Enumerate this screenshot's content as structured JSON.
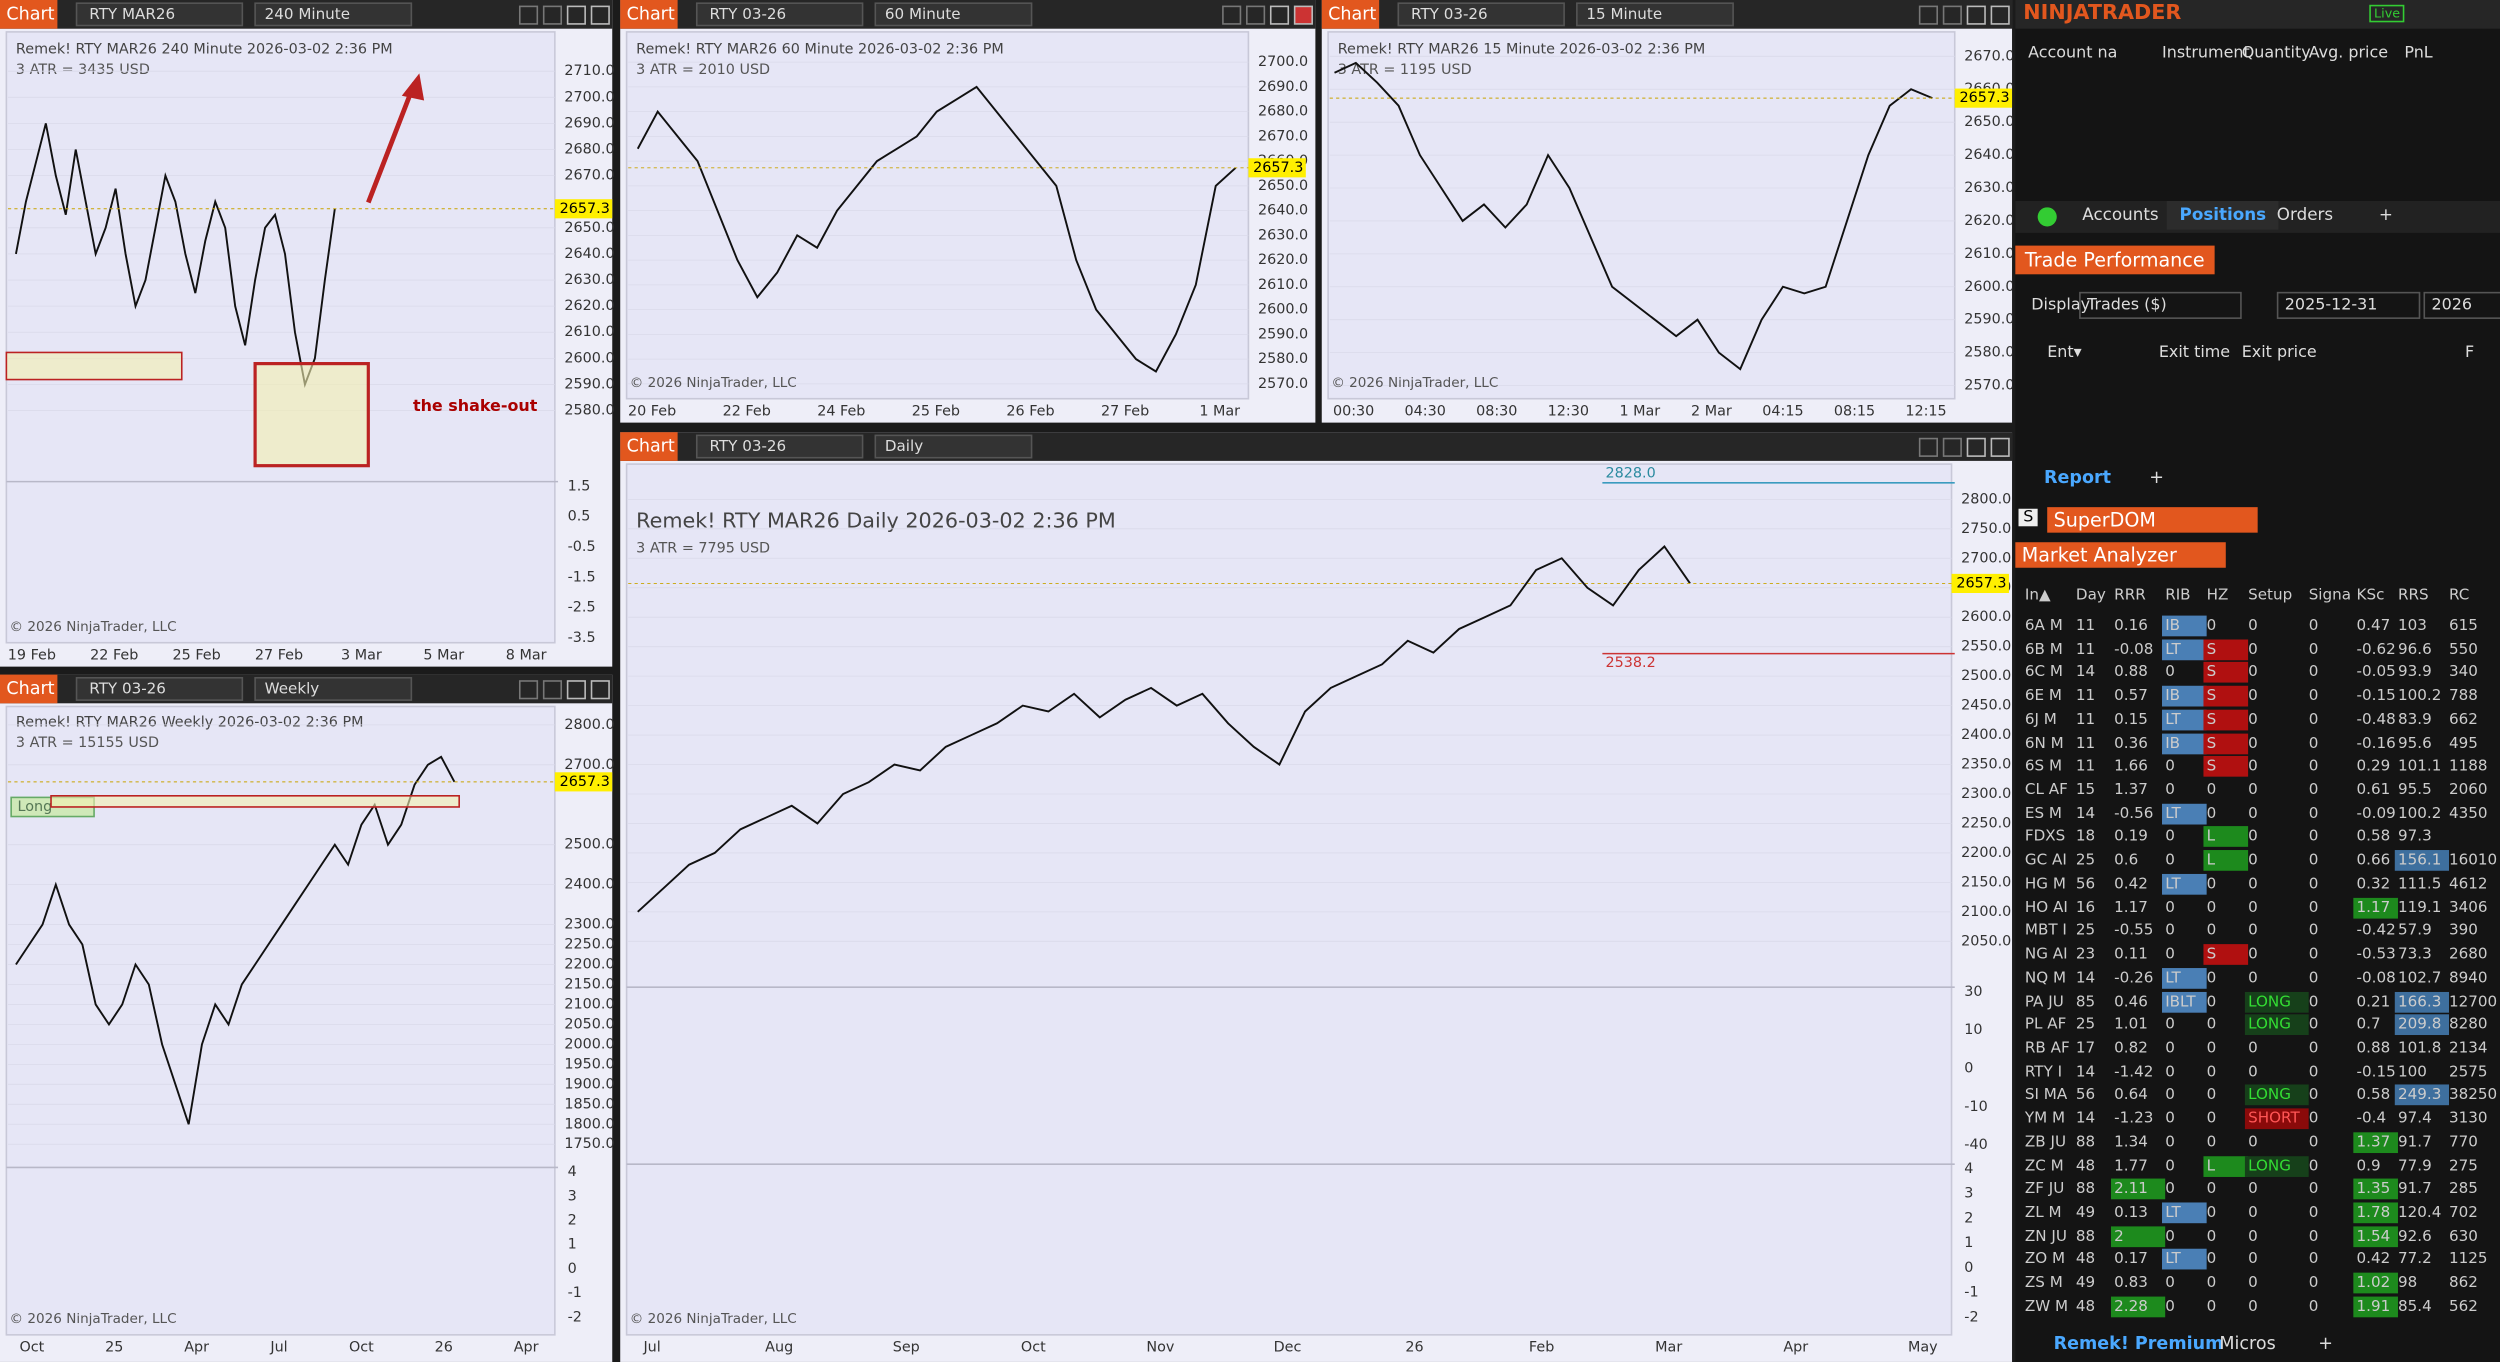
{
  "charts": [
    {
      "label": "Chart",
      "symbol": "RTY MAR26",
      "interval": "240 Minute",
      "heading": "Remek!  RTY MAR26  240 Minute  2026-03-02 2:36 PM",
      "atr": "3 ATR = 3435 USD",
      "ylim": [
        2554,
        2722
      ],
      "yticks": [
        "2710.0",
        "2700.0",
        "2690.0",
        "2680.0",
        "2670.0",
        "2650.0",
        "2640.0",
        "2630.0",
        "2620.0",
        "2610.0",
        "2600.0",
        "2590.0",
        "2580.0"
      ],
      "price_label": "2657.3",
      "osc_ticks": [
        [
          "1.5",
          "0.5",
          "-0.5",
          "-1.5",
          "-2.5",
          "-3.5"
        ]
      ],
      "xticks": [
        "19 Feb",
        "22 Feb",
        "25 Feb",
        "27 Feb",
        "3 Mar",
        "5 Mar",
        "8 Mar"
      ],
      "closes": [
        2640,
        2660,
        2675,
        2690,
        2670,
        2655,
        2680,
        2660,
        2640,
        2650,
        2665,
        2640,
        2620,
        2630,
        2650,
        2670,
        2660,
        2640,
        2625,
        2645,
        2660,
        2650,
        2620,
        2605,
        2630,
        2650,
        2655,
        2640,
        2610,
        2590,
        2600,
        2630,
        2657.3
      ],
      "annotation": "the shake-out",
      "copyright": "© 2026 NinjaTrader, LLC"
    },
    {
      "label": "Chart",
      "symbol": "RTY 03-26",
      "interval": "60 Minute",
      "heading": "Remek!  RTY MAR26  60 Minute  2026-03-02 2:36 PM",
      "atr": "3 ATR = 2010 USD",
      "ylim": [
        2564,
        2709
      ],
      "yticks": [
        "2700.0",
        "2690.0",
        "2680.0",
        "2670.0",
        "2660.0",
        "2650.0",
        "2640.0",
        "2630.0",
        "2620.0",
        "2610.0",
        "2600.0",
        "2590.0",
        "2580.0",
        "2570.0"
      ],
      "price_label": "2657.3",
      "osc_ticks": [],
      "xticks": [
        "20 Feb",
        "22 Feb",
        "24 Feb",
        "25 Feb",
        "26 Feb",
        "27 Feb",
        "1 Mar"
      ],
      "closes": [
        2665,
        2680,
        2670,
        2660,
        2640,
        2620,
        2605,
        2615,
        2630,
        2625,
        2640,
        2650,
        2660,
        2665,
        2670,
        2680,
        2685,
        2690,
        2680,
        2670,
        2660,
        2650,
        2620,
        2600,
        2590,
        2580,
        2575,
        2590,
        2610,
        2650,
        2657.3
      ],
      "copyright": "© 2026 NinjaTrader, LLC"
    },
    {
      "label": "Chart",
      "symbol": "RTY 03-26",
      "interval": "15 Minute",
      "heading": "Remek!  RTY MAR26  15 Minute  2026-03-02 2:36 PM",
      "atr": "3 ATR = 1195 USD",
      "ylim": [
        2566,
        2675
      ],
      "yticks": [
        "2670.0",
        "2660.0",
        "2650.0",
        "2640.0",
        "2630.0",
        "2620.0",
        "2610.0",
        "2600.0",
        "2590.0",
        "2580.0",
        "2570.0"
      ],
      "price_label": "2657.3",
      "osc_ticks": [],
      "xticks": [
        "00:30",
        "04:30",
        "08:30",
        "12:30",
        "1 Mar",
        "2 Mar",
        "04:15",
        "08:15",
        "12:15"
      ],
      "closes": [
        2665,
        2668,
        2662,
        2655,
        2640,
        2630,
        2620,
        2625,
        2618,
        2625,
        2640,
        2630,
        2615,
        2600,
        2595,
        2590,
        2585,
        2590,
        2580,
        2575,
        2590,
        2600,
        2598,
        2600,
        2620,
        2640,
        2655,
        2660,
        2657.3
      ],
      "copyright": "© 2026 NinjaTrader, LLC"
    },
    {
      "label": "Chart",
      "symbol": "RTY 03-26",
      "interval": "Weekly",
      "heading": "Remek!  RTY MAR26  Weekly  2026-03-02 2:36 PM",
      "atr": "3 ATR = 15155 USD",
      "ylim": [
        1700,
        2830
      ],
      "yticks": [
        "2800.0",
        "2700.0",
        "2500.0",
        "2400.0",
        "2300.0",
        "2250.0",
        "2200.0",
        "2150.0",
        "2100.0",
        "2050.0",
        "2000.0",
        "1950.0",
        "1900.0",
        "1850.0",
        "1800.0",
        "1750.0"
      ],
      "price_label": "2657.3",
      "osc_ticks": [
        [
          "4",
          "3",
          "2",
          "1",
          "0",
          "-1",
          "-2"
        ]
      ],
      "xticks": [
        "Oct",
        "25",
        "Apr",
        "Jul",
        "Oct",
        "26",
        "Apr"
      ],
      "closes": [
        2200,
        2250,
        2300,
        2400,
        2300,
        2250,
        2100,
        2050,
        2100,
        2200,
        2150,
        2000,
        1900,
        1800,
        2000,
        2100,
        2050,
        2150,
        2200,
        2250,
        2300,
        2350,
        2400,
        2450,
        2500,
        2450,
        2550,
        2600,
        2500,
        2550,
        2650,
        2700,
        2720,
        2657.3
      ],
      "annotation": "Long",
      "copyright": "© 2026 NinjaTrader, LLC"
    },
    {
      "label": "Chart",
      "symbol": "RTY 03-26",
      "interval": "Daily",
      "heading": "Remek!  RTY MAR26  Daily  2026-03-02 2:36 PM",
      "atr": "3 ATR = 7795 USD",
      "ylim": [
        1983,
        2849
      ],
      "yticks": [
        "2800.0",
        "2750.0",
        "2700.0",
        "2650.0",
        "2600.0",
        "2550.0",
        "2500.0",
        "2450.0",
        "2400.0",
        "2350.0",
        "2300.0",
        "2250.0",
        "2200.0",
        "2150.0",
        "2100.0",
        "2050.0"
      ],
      "price_label": "2657.3",
      "osc_ticks": [
        [
          "30",
          "10",
          "0",
          "-10",
          "-40"
        ],
        [
          "4",
          "3",
          "2",
          "1",
          "0",
          "-1",
          "-2"
        ]
      ],
      "xticks": [
        "Jul",
        "Aug",
        "Sep",
        "Oct",
        "Nov",
        "Dec",
        "26",
        "Feb",
        "Mar",
        "Apr",
        "May"
      ],
      "closes": [
        2100,
        2140,
        2180,
        2200,
        2240,
        2260,
        2280,
        2250,
        2300,
        2320,
        2350,
        2340,
        2380,
        2400,
        2420,
        2450,
        2440,
        2470,
        2430,
        2460,
        2480,
        2450,
        2470,
        2420,
        2380,
        2350,
        2440,
        2480,
        2500,
        2520,
        2560,
        2540,
        2580,
        2600,
        2620,
        2680,
        2700,
        2650,
        2620,
        2680,
        2720,
        2657.3
      ],
      "levels": [
        "2828.0",
        "2538.2"
      ],
      "copyright": "© 2026 NinjaTrader, LLC"
    }
  ],
  "right": {
    "brand": "NINJATRADER",
    "live": "Live",
    "positions_columns": [
      "Account na",
      "Instrument",
      "Quantity",
      "Avg. price",
      "PnL"
    ],
    "tabs": [
      "Accounts",
      "Positions",
      "Orders",
      "+"
    ],
    "trade_performance": {
      "title": "Trade Performance",
      "display_label": "Display",
      "display_value": "Trades ($)",
      "date": "2025-12-31",
      "date2": "2026",
      "columns": [
        "Ent▾",
        "Exit time",
        "Exit price",
        "F"
      ],
      "tabs": [
        "Report",
        "+"
      ]
    },
    "superdom": {
      "badge": "S",
      "title": "SuperDOM"
    },
    "market_analyzer": {
      "title": "Market Analyzer",
      "columns": [
        "In▲",
        "Day",
        "RRR",
        "RIB",
        "HZ",
        "Setup",
        "Signa",
        "KSc",
        "RRS",
        "RC"
      ],
      "rows": [
        [
          "6A M",
          "11",
          "0.16",
          "IB",
          "0",
          "0",
          "0",
          "0.47",
          "103",
          "615"
        ],
        [
          "6B M",
          "11",
          "-0.08",
          "LT",
          "S",
          "0",
          "0",
          "-0.62",
          "96.6",
          "550"
        ],
        [
          "6C M",
          "14",
          "0.88",
          "0",
          "S",
          "0",
          "0",
          "-0.05",
          "93.9",
          "340"
        ],
        [
          "6E M",
          "11",
          "0.57",
          "IB",
          "S",
          "0",
          "0",
          "-0.15",
          "100.2",
          "788"
        ],
        [
          "6J M",
          "11",
          "0.15",
          "LT",
          "S",
          "0",
          "0",
          "-0.48",
          "83.9",
          "662"
        ],
        [
          "6N M",
          "11",
          "0.36",
          "IB",
          "S",
          "0",
          "0",
          "-0.16",
          "95.6",
          "495"
        ],
        [
          "6S M",
          "11",
          "1.66",
          "0",
          "S",
          "0",
          "0",
          "0.29",
          "101.1",
          "1188"
        ],
        [
          "CL AF",
          "15",
          "1.37",
          "0",
          "0",
          "0",
          "0",
          "0.61",
          "95.5",
          "2060"
        ],
        [
          "ES M",
          "14",
          "-0.56",
          "LT",
          "0",
          "0",
          "0",
          "-0.09",
          "100.2",
          "4350"
        ],
        [
          "FDXS",
          "18",
          "0.19",
          "0",
          "L",
          "0",
          "0",
          "0.58",
          "97.3",
          ""
        ],
        [
          "GC AI",
          "25",
          "0.6",
          "0",
          "L",
          "0",
          "0",
          "0.66",
          "156.1",
          "16010"
        ],
        [
          "HG M",
          "56",
          "0.42",
          "LT",
          "0",
          "0",
          "0",
          "0.32",
          "111.5",
          "4612"
        ],
        [
          "HO AI",
          "16",
          "1.17",
          "0",
          "0",
          "0",
          "0",
          "1.17",
          "119.1",
          "3406"
        ],
        [
          "MBT I",
          "25",
          "-0.55",
          "0",
          "0",
          "0",
          "0",
          "-0.42",
          "57.9",
          "390"
        ],
        [
          "NG AI",
          "23",
          "0.11",
          "0",
          "S",
          "0",
          "0",
          "-0.53",
          "73.3",
          "2680"
        ],
        [
          "NQ M",
          "14",
          "-0.26",
          "LT",
          "0",
          "0",
          "0",
          "-0.08",
          "102.7",
          "8940"
        ],
        [
          "PA JU",
          "85",
          "0.46",
          "IBLT",
          "0",
          "LONG",
          "0",
          "0.21",
          "166.3",
          "12700"
        ],
        [
          "PL AF",
          "25",
          "1.01",
          "0",
          "0",
          "LONG",
          "0",
          "0.7",
          "209.8",
          "8280"
        ],
        [
          "RB AF",
          "17",
          "0.82",
          "0",
          "0",
          "0",
          "0",
          "0.88",
          "101.8",
          "2134"
        ],
        [
          "RTY I",
          "14",
          "-1.42",
          "0",
          "0",
          "0",
          "0",
          "-0.15",
          "100",
          "2575"
        ],
        [
          "SI MA",
          "56",
          "0.64",
          "0",
          "0",
          "LONG",
          "0",
          "0.58",
          "249.3",
          "38250"
        ],
        [
          "YM M",
          "14",
          "-1.23",
          "0",
          "0",
          "SHORT",
          "0",
          "-0.4",
          "97.4",
          "3130"
        ],
        [
          "ZB JU",
          "88",
          "1.34",
          "0",
          "0",
          "0",
          "0",
          "1.37",
          "91.7",
          "770"
        ],
        [
          "ZC M",
          "48",
          "1.77",
          "0",
          "L",
          "LONG",
          "0",
          "0.9",
          "77.9",
          "275"
        ],
        [
          "ZF JU",
          "88",
          "2.11",
          "0",
          "0",
          "0",
          "0",
          "1.35",
          "91.7",
          "285"
        ],
        [
          "ZL M",
          "49",
          "0.13",
          "LT",
          "0",
          "0",
          "0",
          "1.78",
          "120.4",
          "702"
        ],
        [
          "ZN JU",
          "88",
          "2",
          "0",
          "0",
          "0",
          "0",
          "1.54",
          "92.6",
          "630"
        ],
        [
          "ZO M",
          "48",
          "0.17",
          "LT",
          "0",
          "0",
          "0",
          "0.42",
          "77.2",
          "1125"
        ],
        [
          "ZS M",
          "49",
          "0.83",
          "0",
          "0",
          "0",
          "0",
          "1.02",
          "98",
          "862"
        ],
        [
          "ZW M",
          "48",
          "2.28",
          "0",
          "0",
          "0",
          "0",
          "1.91",
          "85.4",
          "562"
        ]
      ]
    },
    "bottom_tabs": [
      "Remek! Premium",
      "Micros",
      "+"
    ]
  }
}
